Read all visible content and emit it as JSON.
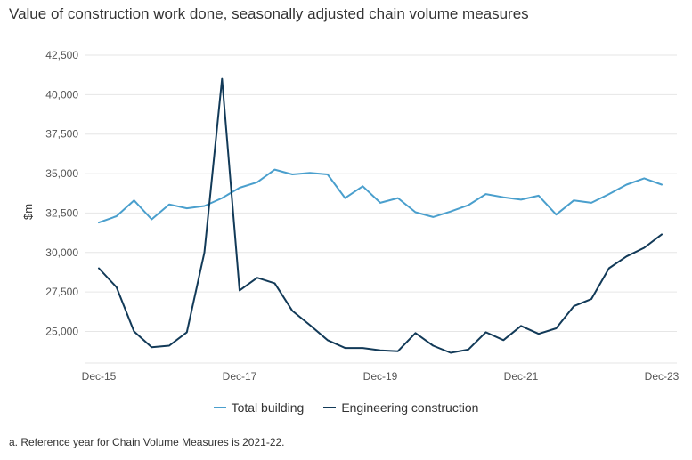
{
  "chart_data": {
    "type": "line",
    "title": "Value of construction work done, seasonally adjusted chain volume measures",
    "ylabel": "$m",
    "xlabel": "",
    "ylim": [
      23000,
      42500
    ],
    "yticks": [
      25000,
      27500,
      30000,
      32500,
      35000,
      37500,
      40000,
      42500
    ],
    "ytick_labels": [
      "25,000",
      "27,500",
      "30,000",
      "32,500",
      "35,000",
      "37,500",
      "40,000",
      "42,500"
    ],
    "x": [
      "Dec-15",
      "Mar-16",
      "Jun-16",
      "Sep-16",
      "Dec-16",
      "Mar-17",
      "Jun-17",
      "Sep-17",
      "Dec-17",
      "Mar-18",
      "Jun-18",
      "Sep-18",
      "Dec-18",
      "Mar-19",
      "Jun-19",
      "Sep-19",
      "Dec-19",
      "Mar-20",
      "Jun-20",
      "Sep-20",
      "Dec-20",
      "Mar-21",
      "Jun-21",
      "Sep-21",
      "Dec-21",
      "Mar-22",
      "Jun-22",
      "Sep-22",
      "Dec-22",
      "Mar-23",
      "Jun-23",
      "Sep-23",
      "Dec-23"
    ],
    "xtick_labels": [
      "Dec-15",
      "Dec-17",
      "Dec-19",
      "Dec-21",
      "Dec-23"
    ],
    "grid": true,
    "legend_position": "bottom",
    "series": [
      {
        "name": "Total building",
        "color": "#4a9fcd",
        "values": [
          31900,
          32300,
          33300,
          32100,
          33050,
          32800,
          32950,
          33450,
          34100,
          34450,
          35250,
          34950,
          35050,
          34950,
          33450,
          34200,
          33150,
          33450,
          32550,
          32250,
          32600,
          33000,
          33700,
          33500,
          33350,
          33600,
          32400,
          33300,
          33150,
          33700,
          34300,
          34700,
          34300
        ]
      },
      {
        "name": "Engineering construction",
        "color": "#123a58",
        "values": [
          29000,
          27800,
          25000,
          24000,
          24100,
          24950,
          30000,
          41000,
          27600,
          28400,
          28050,
          26300,
          25400,
          24450,
          23950,
          23950,
          23800,
          23750,
          24900,
          24100,
          23650,
          23850,
          24950,
          24450,
          25350,
          24850,
          25200,
          26600,
          27050,
          29000,
          29750,
          30300,
          31150
        ]
      }
    ]
  },
  "footnote": "a. Reference year for Chain Volume Measures is 2021-22."
}
